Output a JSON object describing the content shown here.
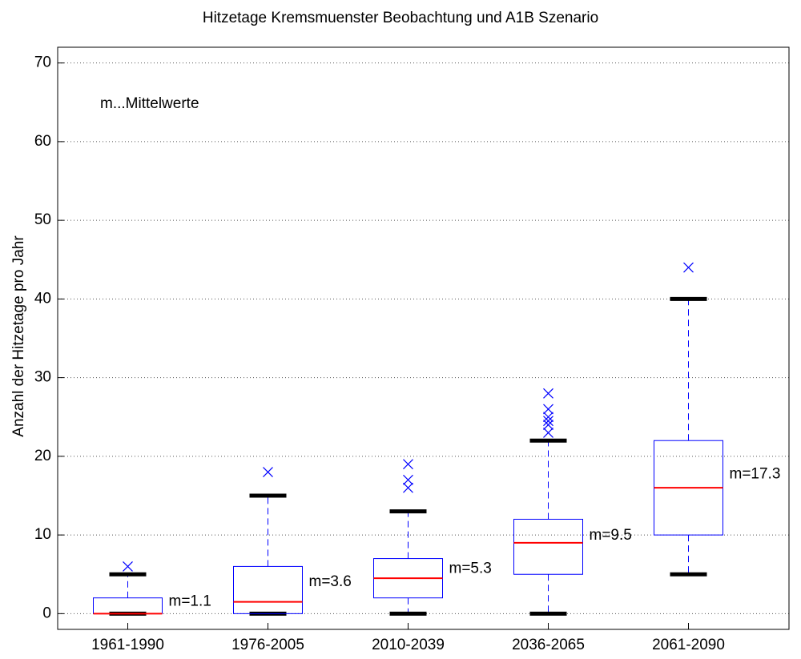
{
  "chart_data": {
    "type": "box",
    "title": "Hitzetage Kremsmuenster Beobachtung und A1B Szenario",
    "ylabel": "Anzahl der Hitzetage pro Jahr",
    "annotation": "m...Mittelwerte",
    "categories": [
      "1961-1990",
      "1976-2005",
      "2010-2039",
      "2036-2065",
      "2061-2090"
    ],
    "boxes": [
      {
        "whisker_low": 0,
        "q1": 0,
        "median": 0,
        "q3": 2,
        "whisker_high": 5,
        "outliers": [
          6
        ]
      },
      {
        "whisker_low": 0,
        "q1": 0,
        "median": 1.5,
        "q3": 6,
        "whisker_high": 15,
        "outliers": [
          18
        ]
      },
      {
        "whisker_low": 0,
        "q1": 2,
        "median": 4.5,
        "q3": 7,
        "whisker_high": 13,
        "outliers": [
          16,
          17,
          19
        ]
      },
      {
        "whisker_low": 0,
        "q1": 5,
        "median": 9,
        "q3": 12,
        "whisker_high": 22,
        "outliers": [
          23,
          24,
          24.5,
          25,
          26,
          28
        ]
      },
      {
        "whisker_low": 5,
        "q1": 10,
        "median": 16,
        "q3": 22,
        "whisker_high": 40,
        "outliers": [
          44
        ]
      }
    ],
    "means": [
      1.1,
      3.6,
      5.3,
      9.5,
      17.3
    ],
    "value_labels": [
      "m=1.1",
      "m=3.6",
      "m=5.3",
      "m=9.5",
      "m=17.3"
    ],
    "box_color": "#0000ff",
    "median_color": "#ff0000",
    "cap_color": "#000000",
    "ylim": [
      -2,
      72
    ],
    "yticks": [
      0,
      10,
      20,
      30,
      40,
      50,
      60,
      70
    ],
    "grid": true
  }
}
